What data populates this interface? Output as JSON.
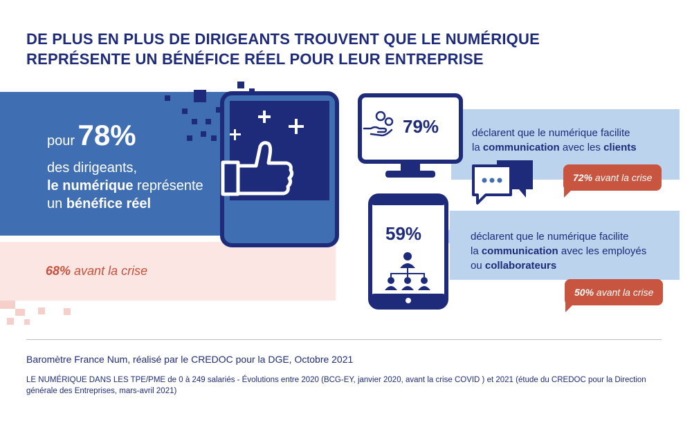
{
  "title": {
    "line1": "DE PLUS EN PLUS DE DIRIGEANTS TROUVENT QUE LE NUMÉRIQUE",
    "line2": "REPRÉSENTE UN BÉNÉFICE RÉEL POUR LEUR ENTREPRISE"
  },
  "main_stat": {
    "prefix": "pour",
    "percent": "78%",
    "line1": "des dirigeants,",
    "line2_bold": "le numérique",
    "line2_rest": " représente",
    "line3_plain": "un ",
    "line3_bold": "bénéfice réel",
    "before_pct": "68%",
    "before_text": " avant la crise"
  },
  "card1": {
    "percent": "79%",
    "line1": "déclarent que le numérique facilite",
    "line2_a": "la ",
    "line2_b": "communication",
    "line2_c": " avec les ",
    "line2_d": "clients",
    "before_pct": "72%",
    "before_text": " avant la crise"
  },
  "card2": {
    "percent": "59%",
    "line1": "déclarent que le numérique facilite",
    "line2_a": "la ",
    "line2_b": "communication",
    "line2_c": " avec les employés",
    "line3_a": "ou ",
    "line3_b": "collaborateurs",
    "before_pct": "50%",
    "before_text": " avant la crise"
  },
  "footer": {
    "source": "Baromètre France Num, réalisé par le CREDOC pour la DGE, Octobre 2021",
    "note": "LE NUMÉRIQUE DANS LES TPE/PME de 0 à 249 salariés - Évolutions entre 2020 (BCG-EY, janvier 2020, avant la crise COVID ) et 2021 (étude du CREDOC pour la Direction générale des Entreprises, mars-avril 2021)"
  },
  "colors": {
    "navy": "#1e2b7a",
    "blue": "#3f6fb2",
    "light_blue": "#bcd3ee",
    "accent": "#c8553f",
    "pink": "#fbe6e3"
  },
  "icons": [
    "thumbs-up-monitor-icon",
    "hand-coins-icon",
    "chat-bubbles-icon",
    "org-chart-icon"
  ]
}
